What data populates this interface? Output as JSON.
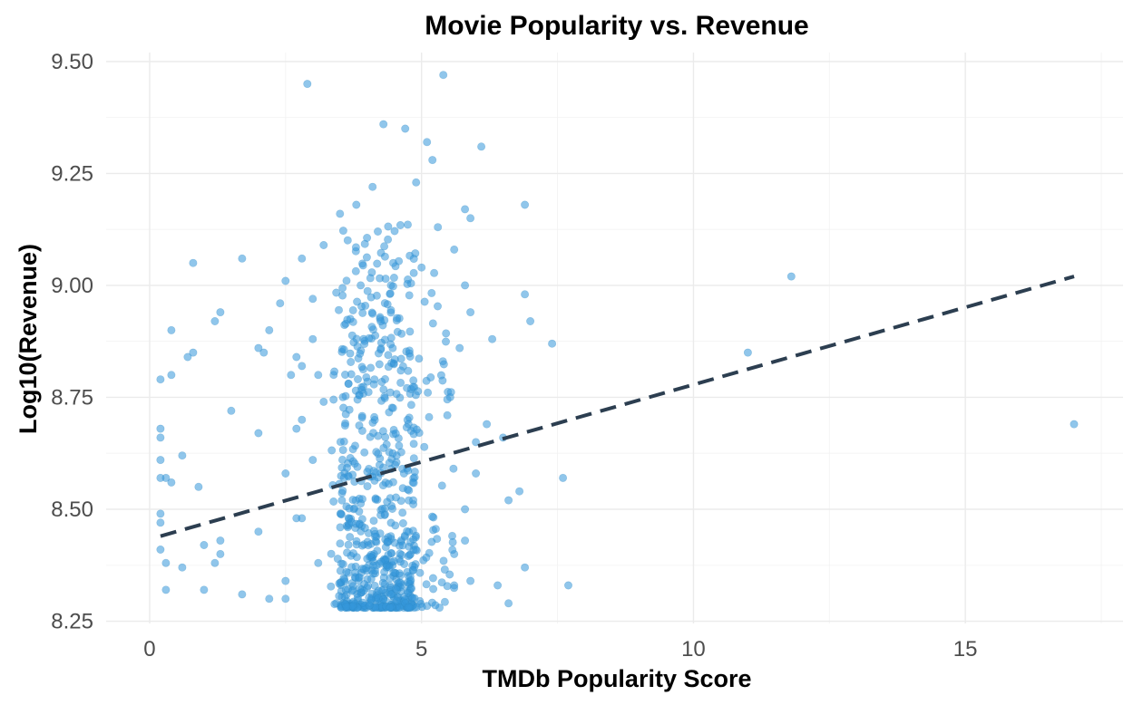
{
  "chart_data": {
    "type": "scatter",
    "title": "Movie Popularity vs. Revenue",
    "xlabel": "TMDb Popularity Score",
    "ylabel": "Log10(Revenue)",
    "xlim": [
      -0.8,
      17.9
    ],
    "ylim": [
      8.245,
      9.52
    ],
    "x_ticks": [
      0,
      5,
      10,
      15
    ],
    "x_tick_labels": [
      "0",
      "5",
      "10",
      "15"
    ],
    "y_ticks": [
      8.25,
      8.5,
      8.75,
      9.0,
      9.25,
      9.5
    ],
    "y_tick_labels": [
      "8.25",
      "8.50",
      "8.75",
      "9.00",
      "9.25",
      "9.50"
    ],
    "grid": true,
    "legend": "none",
    "point_color": "#3498db",
    "trend_color": "#2c3e50",
    "trendline": {
      "style": "dashed",
      "x": [
        0.2,
        17.0
      ],
      "y": [
        8.44,
        9.02
      ]
    },
    "outliers": [
      {
        "x": 17.0,
        "y": 8.69
      },
      {
        "x": 11.8,
        "y": 9.02
      },
      {
        "x": 11.0,
        "y": 8.85
      },
      {
        "x": 7.7,
        "y": 8.33
      },
      {
        "x": 7.6,
        "y": 8.57
      },
      {
        "x": 7.4,
        "y": 8.87
      },
      {
        "x": 7.0,
        "y": 8.92
      },
      {
        "x": 6.9,
        "y": 9.18
      },
      {
        "x": 6.9,
        "y": 8.98
      },
      {
        "x": 6.9,
        "y": 8.37
      },
      {
        "x": 6.8,
        "y": 8.54
      },
      {
        "x": 6.6,
        "y": 8.29
      },
      {
        "x": 6.6,
        "y": 8.52
      },
      {
        "x": 6.5,
        "y": 8.66
      },
      {
        "x": 6.4,
        "y": 8.33
      },
      {
        "x": 6.3,
        "y": 8.88
      },
      {
        "x": 6.2,
        "y": 8.69
      },
      {
        "x": 6.1,
        "y": 9.31
      },
      {
        "x": 6.0,
        "y": 8.58
      },
      {
        "x": 5.9,
        "y": 9.15
      },
      {
        "x": 5.8,
        "y": 9.17
      },
      {
        "x": 5.4,
        "y": 9.47
      },
      {
        "x": 5.1,
        "y": 9.32
      },
      {
        "x": 5.2,
        "y": 9.28
      },
      {
        "x": 2.9,
        "y": 9.45
      },
      {
        "x": 4.3,
        "y": 9.36
      },
      {
        "x": 4.7,
        "y": 9.35
      },
      {
        "x": 4.1,
        "y": 9.22
      },
      {
        "x": 4.9,
        "y": 9.23
      },
      {
        "x": 3.5,
        "y": 9.16
      },
      {
        "x": 3.8,
        "y": 9.18
      },
      {
        "x": 3.2,
        "y": 9.09
      },
      {
        "x": 2.8,
        "y": 9.06
      },
      {
        "x": 1.7,
        "y": 9.06
      },
      {
        "x": 0.8,
        "y": 9.05
      },
      {
        "x": 2.5,
        "y": 9.01
      },
      {
        "x": 3.0,
        "y": 8.97
      },
      {
        "x": 2.4,
        "y": 8.96
      },
      {
        "x": 1.3,
        "y": 8.94
      },
      {
        "x": 1.2,
        "y": 8.92
      },
      {
        "x": 0.4,
        "y": 8.9
      },
      {
        "x": 2.2,
        "y": 8.9
      },
      {
        "x": 2.0,
        "y": 8.86
      },
      {
        "x": 0.8,
        "y": 8.85
      },
      {
        "x": 0.7,
        "y": 8.84
      },
      {
        "x": 2.1,
        "y": 8.85
      },
      {
        "x": 2.7,
        "y": 8.84
      },
      {
        "x": 3.0,
        "y": 8.88
      },
      {
        "x": 3.1,
        "y": 8.8
      },
      {
        "x": 0.4,
        "y": 8.8
      },
      {
        "x": 0.2,
        "y": 8.79
      },
      {
        "x": 2.6,
        "y": 8.8
      },
      {
        "x": 2.8,
        "y": 8.82
      },
      {
        "x": 1.5,
        "y": 8.72
      },
      {
        "x": 3.2,
        "y": 8.74
      },
      {
        "x": 2.7,
        "y": 8.68
      },
      {
        "x": 2.0,
        "y": 8.67
      },
      {
        "x": 2.8,
        "y": 8.7
      },
      {
        "x": 0.2,
        "y": 8.68
      },
      {
        "x": 0.2,
        "y": 8.66
      },
      {
        "x": 0.6,
        "y": 8.62
      },
      {
        "x": 0.2,
        "y": 8.61
      },
      {
        "x": 3.0,
        "y": 8.61
      },
      {
        "x": 2.5,
        "y": 8.58
      },
      {
        "x": 0.3,
        "y": 8.57
      },
      {
        "x": 0.2,
        "y": 8.57
      },
      {
        "x": 0.4,
        "y": 8.56
      },
      {
        "x": 0.9,
        "y": 8.55
      },
      {
        "x": 0.2,
        "y": 8.49
      },
      {
        "x": 0.2,
        "y": 8.47
      },
      {
        "x": 2.0,
        "y": 8.45
      },
      {
        "x": 1.3,
        "y": 8.43
      },
      {
        "x": 0.2,
        "y": 8.41
      },
      {
        "x": 1.0,
        "y": 8.42
      },
      {
        "x": 1.3,
        "y": 8.4
      },
      {
        "x": 1.2,
        "y": 8.38
      },
      {
        "x": 0.3,
        "y": 8.38
      },
      {
        "x": 0.6,
        "y": 8.37
      },
      {
        "x": 2.7,
        "y": 8.48
      },
      {
        "x": 2.8,
        "y": 8.48
      },
      {
        "x": 3.1,
        "y": 8.38
      },
      {
        "x": 2.5,
        "y": 8.34
      },
      {
        "x": 1.0,
        "y": 8.32
      },
      {
        "x": 0.3,
        "y": 8.32
      },
      {
        "x": 1.7,
        "y": 8.31
      },
      {
        "x": 2.2,
        "y": 8.3
      },
      {
        "x": 2.5,
        "y": 8.3
      },
      {
        "x": 5.6,
        "y": 8.33
      },
      {
        "x": 5.9,
        "y": 8.34
      },
      {
        "x": 5.6,
        "y": 8.4
      },
      {
        "x": 5.8,
        "y": 8.43
      },
      {
        "x": 5.8,
        "y": 8.5
      },
      {
        "x": 6.0,
        "y": 8.65
      },
      {
        "x": 5.7,
        "y": 8.86
      },
      {
        "x": 5.8,
        "y": 9.0
      },
      {
        "x": 5.9,
        "y": 8.94
      },
      {
        "x": 5.6,
        "y": 9.08
      },
      {
        "x": 5.3,
        "y": 9.13
      },
      {
        "x": 5.0,
        "y": 9.04
      }
    ],
    "clusters": [
      {
        "x_range": [
          3.5,
          4.9
        ],
        "y_range": [
          8.28,
          9.14
        ],
        "count": 560,
        "y_skew": 2.4
      },
      {
        "x_range": [
          3.3,
          5.6
        ],
        "y_range": [
          8.28,
          9.05
        ],
        "count": 160,
        "y_skew": 1.6
      }
    ]
  }
}
